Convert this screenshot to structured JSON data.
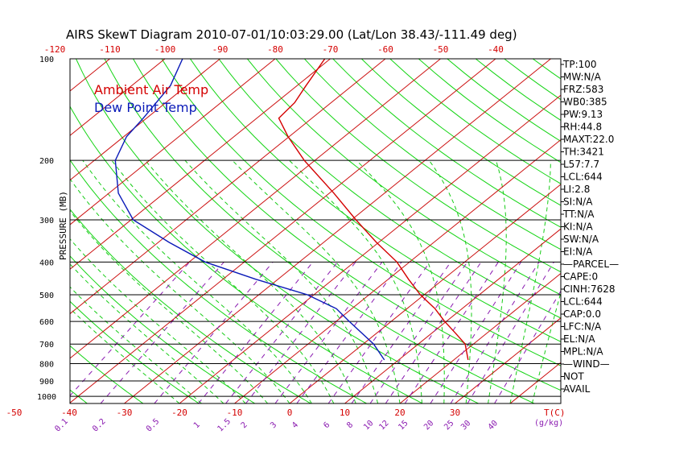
{
  "title": "AIRS SkewT Diagram 2010-07-01/10:03:29.00 (Lat/Lon 38.43/-111.49 deg)",
  "colors": {
    "ambient": "#d40000",
    "dewpoint": "#0a1ab8",
    "dry_adiabat": "#12d412",
    "moist_adiabat": "#16cc16",
    "mixing_ratio": "#8a1ab0",
    "isobar": "#000000"
  },
  "chart_data": {
    "type": "line",
    "title": "AIRS SkewT Diagram 2010-07-01/10:03:29.00 (Lat/Lon 38.43/-111.49 deg)",
    "ylabel": "PRESSURE (MB)",
    "xlabel": "T(C)",
    "yscale": "log-pressure",
    "ylim": [
      1050,
      100
    ],
    "pressure_levels": [
      100,
      200,
      300,
      400,
      500,
      600,
      700,
      800,
      900,
      1000
    ],
    "bottom_temp_ticks": [
      -50,
      -40,
      -30,
      -20,
      -10,
      0,
      10,
      20,
      30
    ],
    "top_temp_ticks": [
      -120,
      -110,
      -100,
      -90,
      -80,
      -70,
      -60,
      -50,
      -40
    ],
    "mixing_ratio_unit": "(g/kg)",
    "mixing_ratio_labels": [
      "0.1",
      "0.2",
      "0.5",
      "1",
      "1.5",
      "2",
      "3",
      "4",
      "6",
      "8",
      "10",
      "12",
      "15",
      "20",
      "25",
      "30",
      "40"
    ],
    "legend": [
      {
        "name": "Ambient Air Temp",
        "color": "#d40000"
      },
      {
        "name": "Dew Point Temp",
        "color": "#0a1ab8"
      }
    ],
    "series": [
      {
        "name": "Ambient Air Temp",
        "color": "#d40000",
        "points": [
          {
            "p": 780,
            "t": 22.6
          },
          {
            "p": 700,
            "t": 18.5
          },
          {
            "p": 650,
            "t": 14.3
          },
          {
            "p": 600,
            "t": 9.7
          },
          {
            "p": 550,
            "t": 5.1
          },
          {
            "p": 500,
            "t": -0.7
          },
          {
            "p": 450,
            "t": -6.3
          },
          {
            "p": 400,
            "t": -12.3
          },
          {
            "p": 350,
            "t": -20.4
          },
          {
            "p": 300,
            "t": -29.2
          },
          {
            "p": 250,
            "t": -39.2
          },
          {
            "p": 200,
            "t": -51.9
          },
          {
            "p": 170,
            "t": -60.2
          },
          {
            "p": 150,
            "t": -66.0
          },
          {
            "p": 135,
            "t": -66.6
          },
          {
            "p": 120,
            "t": -68.4
          },
          {
            "p": 100,
            "t": -71.0
          }
        ]
      },
      {
        "name": "Dew Point Temp",
        "color": "#0a1ab8",
        "points": [
          {
            "p": 780,
            "t": 7.4
          },
          {
            "p": 700,
            "t": 1.9
          },
          {
            "p": 600,
            "t": -7.6
          },
          {
            "p": 550,
            "t": -12.8
          },
          {
            "p": 500,
            "t": -21.2
          },
          {
            "p": 450,
            "t": -34.0
          },
          {
            "p": 400,
            "t": -47.1
          },
          {
            "p": 350,
            "t": -58.0
          },
          {
            "p": 300,
            "t": -69.6
          },
          {
            "p": 250,
            "t": -78.3
          },
          {
            "p": 200,
            "t": -86.2
          },
          {
            "p": 170,
            "t": -89.5
          },
          {
            "p": 150,
            "t": -90.6
          },
          {
            "p": 120,
            "t": -93.0
          },
          {
            "p": 100,
            "t": -96.8
          }
        ]
      }
    ]
  },
  "indices": [
    "TP:100",
    "MW:N/A",
    "FRZ:583",
    "WB0:385",
    "PW:9.13",
    "RH:44.8",
    "MAXT:22.0",
    "TH:3421",
    "L57:7.7",
    "LCL:644",
    "LI:2.8",
    "SI:N/A",
    "TT:N/A",
    "KI:N/A",
    "SW:N/A",
    "EI:N/A",
    "—PARCEL—",
    "CAPE:0",
    "CINH:7628",
    "LCL:644",
    "CAP:0.0",
    "LFC:N/A",
    "EL:N/A",
    "MPL:N/A",
    "—WIND—",
    "NOT",
    "AVAIL"
  ]
}
